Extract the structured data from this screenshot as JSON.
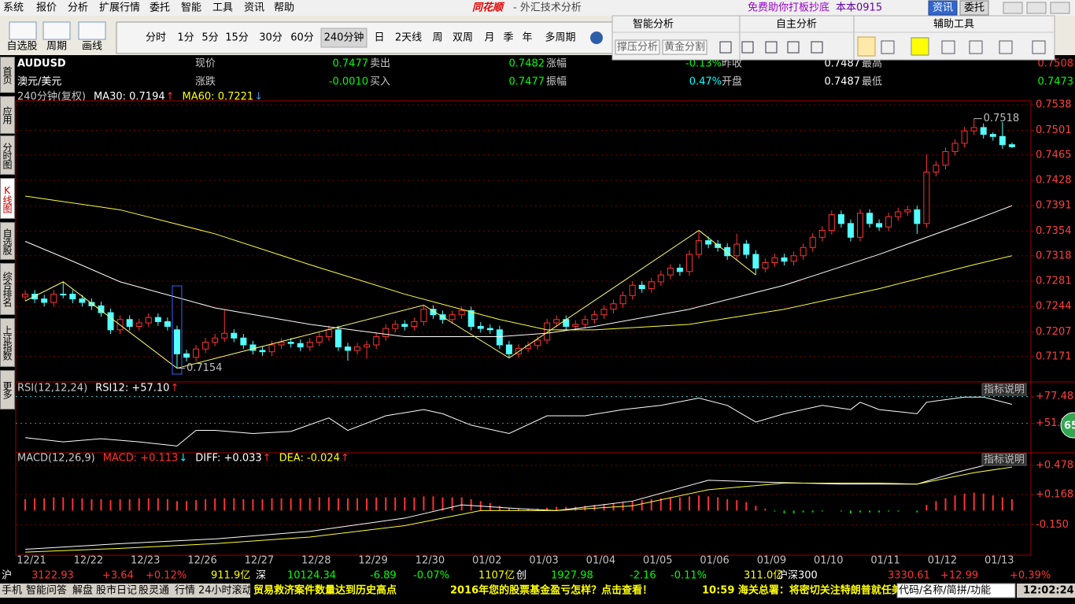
{
  "menu": [
    "系统",
    "报价",
    "分析",
    "扩展行情",
    "委托",
    "智能",
    "工具",
    "资讯",
    "帮助"
  ],
  "app_title": {
    "logo": "同花顺",
    "subtitle": "- 外汇技术分析"
  },
  "promo": "免费助你打板抄底",
  "account": "本本0915",
  "top_buttons": [
    "资讯",
    "委托"
  ],
  "tools": [
    "自选股",
    "周期",
    "画线"
  ],
  "periods": {
    "items": [
      "分时",
      "1分",
      "5分",
      "15分",
      "30分",
      "60分",
      "240分钟",
      "日",
      "2天线",
      "周",
      "双周",
      "月",
      "季",
      "年",
      "多周期"
    ],
    "selected": 6
  },
  "panels": {
    "smart": {
      "title": "智能分析",
      "buttons": [
        "撑压分析",
        "黄金分割"
      ]
    },
    "self": {
      "title": "自主分析"
    },
    "aux": {
      "title": "辅助工具"
    }
  },
  "side_tabs": {
    "items": [
      "首页",
      "应用",
      "分时图",
      "K线图",
      "自选股",
      "综合排名",
      "上证指数",
      "更多"
    ],
    "active": 3
  },
  "quote": {
    "symbol": "AUDUSD",
    "name": "澳元/美元",
    "rows": [
      [
        [
          "现价",
          "0.7477"
        ],
        [
          "卖出",
          "0.7482"
        ],
        [
          "涨幅",
          "-0.13%"
        ],
        [
          "昨收",
          "0.7487"
        ],
        [
          "最高",
          "0.7508"
        ]
      ],
      [
        [
          "涨跌",
          "-0.0010"
        ],
        [
          "买入",
          "0.7477"
        ],
        [
          "振幅",
          "0.47%"
        ],
        [
          "开盘",
          "0.7487"
        ],
        [
          "最低",
          "0.7473"
        ]
      ]
    ],
    "colors": [
      [
        "#00ff00",
        "#00ff00",
        "#00ff00",
        "#ffffff",
        "#ff3232"
      ],
      [
        "#00ff00",
        "#00ff00",
        "#00ffff",
        "#ffffff",
        "#00ff00"
      ]
    ]
  },
  "indicator_line": {
    "period": "240分钟(复权)",
    "items": [
      {
        "text": "MA30: 0.7194",
        "arrow": "↑",
        "color": "#ffffff",
        "arrow_color": "#ff3232"
      },
      {
        "text": "MA60: 0.7221",
        "arrow": "↓",
        "color": "#ffff00",
        "arrow_color": "#3399ff"
      }
    ]
  },
  "rsi_line": {
    "period": "RSI(12,12,24)",
    "items": [
      {
        "text": "RSI12: +57.10",
        "arrow": "↑",
        "color": "#ffffff",
        "arrow_color": "#ff3232"
      }
    ]
  },
  "macd_line": {
    "period": "MACD(12,26,9)",
    "items": [
      {
        "text": "MACD: +0.113",
        "arrow": "↓",
        "color": "#ff3232",
        "arrow_color": "#00ffff"
      },
      {
        "text": "DIFF: +0.033",
        "arrow": "↑",
        "color": "#ffffff",
        "arrow_color": "#ff3232"
      },
      {
        "text": "DEA: -0.024",
        "arrow": "↑",
        "color": "#ffff00",
        "arrow_color": "#ff3232"
      }
    ]
  },
  "indicator_help": "指标说明",
  "badge": "65",
  "chart_data": {
    "type": "candlestick",
    "up_color": "#ff3232",
    "down_color": "#54ffff",
    "grid": true,
    "xlim": [
      -1,
      106
    ],
    "xticks": [
      {
        "value": 0,
        "label": "12/21"
      },
      {
        "value": 6,
        "label": "12/22"
      },
      {
        "value": 12,
        "label": "12/23"
      },
      {
        "value": 18,
        "label": "12/26"
      },
      {
        "value": 24,
        "label": "12/27"
      },
      {
        "value": 30,
        "label": "12/28"
      },
      {
        "value": 36,
        "label": "12/29"
      },
      {
        "value": 42,
        "label": "12/30"
      },
      {
        "value": 48,
        "label": "01/02"
      },
      {
        "value": 54,
        "label": "01/03"
      },
      {
        "value": 60,
        "label": "01/04"
      },
      {
        "value": 66,
        "label": "01/05"
      },
      {
        "value": 72,
        "label": "01/06"
      },
      {
        "value": 78,
        "label": "01/09"
      },
      {
        "value": 84,
        "label": "01/10"
      },
      {
        "value": 90,
        "label": "01/11"
      },
      {
        "value": 96,
        "label": "01/12"
      },
      {
        "value": 102,
        "label": "01/13"
      }
    ],
    "ylim": [
      0.7134,
      0.7544
    ],
    "yticks": [
      0.7538,
      0.7501,
      0.7465,
      0.7428,
      0.7391,
      0.7354,
      0.7318,
      0.7281,
      0.7244,
      0.7207,
      0.7171
    ],
    "open": [
      0.7258,
      0.7262,
      0.7255,
      0.725,
      0.7262,
      0.7262,
      0.7255,
      0.725,
      0.7245,
      0.7235,
      0.721,
      0.7225,
      0.7215,
      0.722,
      0.7228,
      0.7222,
      0.721,
      0.7175,
      0.717,
      0.7182,
      0.7192,
      0.7198,
      0.7205,
      0.7198,
      0.7188,
      0.718,
      0.7178,
      0.7188,
      0.7192,
      0.719,
      0.7185,
      0.7192,
      0.72,
      0.721,
      0.7185,
      0.718,
      0.7185,
      0.7188,
      0.72,
      0.7212,
      0.7218,
      0.7215,
      0.7222,
      0.724,
      0.7232,
      0.7225,
      0.7232,
      0.7238,
      0.7215,
      0.7212,
      0.721,
      0.7188,
      0.7175,
      0.7183,
      0.7187,
      0.7195,
      0.722,
      0.7225,
      0.7215,
      0.7218,
      0.7225,
      0.7232,
      0.724,
      0.7248,
      0.726,
      0.7275,
      0.727,
      0.728,
      0.729,
      0.73,
      0.7295,
      0.732,
      0.734,
      0.7335,
      0.733,
      0.7318,
      0.7335,
      0.732,
      0.73,
      0.7308,
      0.7315,
      0.731,
      0.7318,
      0.733,
      0.7345,
      0.7355,
      0.7378,
      0.7365,
      0.7345,
      0.738,
      0.7365,
      0.736,
      0.7375,
      0.7382,
      0.7385,
      0.7365,
      0.744,
      0.745,
      0.747,
      0.7482,
      0.75,
      0.7505,
      0.7495,
      0.7492,
      0.748
    ],
    "high": [
      0.7268,
      0.7268,
      0.7261,
      0.7268,
      0.728,
      0.7268,
      0.7261,
      0.7256,
      0.7251,
      0.7241,
      0.7231,
      0.7231,
      0.7226,
      0.7234,
      0.7234,
      0.7228,
      0.7216,
      0.7181,
      0.7188,
      0.7198,
      0.7204,
      0.724,
      0.7211,
      0.7204,
      0.7194,
      0.7186,
      0.7194,
      0.7198,
      0.7198,
      0.7196,
      0.7198,
      0.7206,
      0.7216,
      0.7216,
      0.7191,
      0.7191,
      0.7194,
      0.7206,
      0.7218,
      0.7224,
      0.7224,
      0.7228,
      0.7246,
      0.7246,
      0.7238,
      0.7238,
      0.7244,
      0.7244,
      0.7221,
      0.7218,
      0.7216,
      0.7194,
      0.7189,
      0.7193,
      0.7201,
      0.7226,
      0.7231,
      0.7231,
      0.7224,
      0.7231,
      0.7238,
      0.7246,
      0.7254,
      0.7266,
      0.7281,
      0.7281,
      0.7286,
      0.7296,
      0.7306,
      0.7306,
      0.7326,
      0.7355,
      0.7346,
      0.7341,
      0.7336,
      0.735,
      0.7341,
      0.7326,
      0.7314,
      0.7321,
      0.7321,
      0.7324,
      0.7336,
      0.7351,
      0.7361,
      0.7384,
      0.7384,
      0.7371,
      0.7386,
      0.7386,
      0.7371,
      0.7381,
      0.7388,
      0.7391,
      0.7391,
      0.7466,
      0.7456,
      0.7476,
      0.7488,
      0.7506,
      0.7518,
      0.7511,
      0.7498,
      0.7513,
      0.7483
    ],
    "low": [
      0.7252,
      0.7249,
      0.7244,
      0.7244,
      0.7256,
      0.7249,
      0.7244,
      0.7239,
      0.7229,
      0.7204,
      0.7204,
      0.7209,
      0.7209,
      0.7214,
      0.7216,
      0.7209,
      0.7154,
      0.7164,
      0.7164,
      0.7176,
      0.7186,
      0.7192,
      0.7192,
      0.7182,
      0.7174,
      0.7172,
      0.7172,
      0.7182,
      0.7184,
      0.7179,
      0.7179,
      0.7186,
      0.7194,
      0.7179,
      0.7165,
      0.7174,
      0.7168,
      0.7182,
      0.7194,
      0.7206,
      0.7209,
      0.7209,
      0.7216,
      0.7226,
      0.7219,
      0.7219,
      0.7226,
      0.7209,
      0.7206,
      0.7204,
      0.7182,
      0.7169,
      0.7169,
      0.7177,
      0.7181,
      0.7189,
      0.7214,
      0.7209,
      0.7209,
      0.7212,
      0.7219,
      0.7226,
      0.7234,
      0.7242,
      0.7254,
      0.7264,
      0.7264,
      0.7274,
      0.7284,
      0.7289,
      0.7289,
      0.7314,
      0.7329,
      0.7324,
      0.7312,
      0.7312,
      0.7314,
      0.729,
      0.7294,
      0.7302,
      0.7304,
      0.7304,
      0.7312,
      0.7324,
      0.7339,
      0.7349,
      0.7359,
      0.7339,
      0.7339,
      0.7359,
      0.7354,
      0.7354,
      0.7369,
      0.7376,
      0.735,
      0.7359,
      0.7434,
      0.7444,
      0.7464,
      0.7476,
      0.7494,
      0.7489,
      0.7486,
      0.7474,
      0.7475
    ],
    "close": [
      0.7262,
      0.7255,
      0.725,
      0.7262,
      0.7262,
      0.7255,
      0.725,
      0.7245,
      0.7235,
      0.721,
      0.7225,
      0.7215,
      0.722,
      0.7228,
      0.7222,
      0.7215,
      0.7175,
      0.717,
      0.7182,
      0.7192,
      0.7198,
      0.7205,
      0.7198,
      0.7188,
      0.718,
      0.7178,
      0.7188,
      0.7192,
      0.719,
      0.7185,
      0.7192,
      0.72,
      0.721,
      0.7185,
      0.718,
      0.7185,
      0.7188,
      0.72,
      0.7212,
      0.7218,
      0.7215,
      0.7222,
      0.724,
      0.7232,
      0.7225,
      0.7232,
      0.7238,
      0.7215,
      0.7212,
      0.721,
      0.7188,
      0.7175,
      0.7183,
      0.7187,
      0.7195,
      0.722,
      0.7225,
      0.7215,
      0.7218,
      0.7225,
      0.7232,
      0.724,
      0.7248,
      0.726,
      0.7275,
      0.727,
      0.728,
      0.729,
      0.73,
      0.7295,
      0.732,
      0.734,
      0.7335,
      0.733,
      0.7318,
      0.7335,
      0.732,
      0.73,
      0.7308,
      0.7315,
      0.731,
      0.7318,
      0.733,
      0.7345,
      0.7355,
      0.7378,
      0.7365,
      0.7345,
      0.738,
      0.7365,
      0.736,
      0.7375,
      0.7382,
      0.7385,
      0.7365,
      0.744,
      0.745,
      0.747,
      0.7482,
      0.75,
      0.7505,
      0.7495,
      0.7492,
      0.748,
      0.7477
    ],
    "ma_lines": [
      {
        "color": "#ffffff",
        "x": [
          0,
          5,
          10,
          20,
          30,
          40,
          50,
          55,
          60,
          70,
          80,
          90,
          100,
          104
        ],
        "values": [
          0.7339,
          0.731,
          0.728,
          0.7242,
          0.7218,
          0.72,
          0.72,
          0.7205,
          0.7215,
          0.724,
          0.7275,
          0.732,
          0.737,
          0.7391
        ]
      },
      {
        "color": "#ffff33",
        "x": [
          0,
          10,
          20,
          30,
          40,
          50,
          55,
          60,
          70,
          80,
          90,
          100,
          104
        ],
        "values": [
          0.7405,
          0.7385,
          0.735,
          0.7305,
          0.7262,
          0.7225,
          0.721,
          0.721,
          0.7218,
          0.724,
          0.727,
          0.7305,
          0.7318
        ]
      }
    ],
    "zigzag": {
      "color": "#ffff66",
      "x": [
        0,
        4,
        16,
        42,
        51,
        71,
        77
      ],
      "values": [
        0.7252,
        0.728,
        0.7154,
        0.7246,
        0.7169,
        0.7355,
        0.729
      ]
    },
    "rsi": {
      "ylim": [
        25,
        90
      ],
      "yticks": [
        {
          "value": 77.48,
          "label": "+77.48"
        },
        {
          "value": 51.77,
          "label": "+51.77"
        }
      ],
      "tick_colors": [
        "#33cccc",
        "#33aa33"
      ],
      "color": "#ffffff",
      "x": [
        0,
        4,
        8,
        12,
        16,
        18,
        20,
        24,
        28,
        32,
        34,
        38,
        42,
        44,
        47,
        51,
        55,
        59,
        63,
        67,
        71,
        74,
        77,
        80,
        84,
        87,
        88,
        90,
        94,
        95,
        99,
        101,
        104
      ],
      "values": [
        38,
        34,
        37,
        34,
        30,
        45,
        45,
        42,
        44,
        57,
        45,
        59,
        65,
        61,
        50,
        42,
        59,
        59,
        65,
        69,
        76,
        69,
        53,
        61,
        69,
        65,
        72,
        65,
        61,
        72,
        77,
        77,
        70
      ]
    },
    "macd": {
      "ylim": [
        -0.472,
        0.594
      ],
      "yticks": [
        {
          "value": 0.478,
          "label": "+0.478"
        },
        {
          "value": 0.168,
          "label": "+0.168"
        },
        {
          "value": -0.15,
          "label": "-0.150"
        }
      ],
      "up_color": "#ff3232",
      "down_color": "#00cc00",
      "histogram": [
        0.12,
        0.13,
        0.13,
        0.14,
        0.14,
        0.13,
        0.13,
        0.12,
        0.12,
        0.11,
        0.12,
        0.12,
        0.13,
        0.13,
        0.13,
        0.12,
        0.1,
        0.1,
        0.11,
        0.12,
        0.13,
        0.13,
        0.13,
        0.12,
        0.12,
        0.12,
        0.13,
        0.13,
        0.13,
        0.13,
        0.13,
        0.14,
        0.14,
        0.13,
        0.13,
        0.13,
        0.13,
        0.14,
        0.14,
        0.14,
        0.14,
        0.14,
        0.15,
        0.15,
        0.14,
        0.14,
        0.14,
        0.12,
        0.1,
        0.08,
        0.05,
        0.03,
        0.02,
        0.02,
        0.02,
        0.03,
        0.04,
        0.04,
        0.04,
        0.05,
        0.06,
        0.07,
        0.08,
        0.09,
        0.1,
        0.11,
        0.12,
        0.13,
        0.14,
        0.14,
        0.15,
        0.16,
        0.15,
        0.14,
        0.12,
        0.11,
        0.09,
        0.05,
        0.02,
        -0.01,
        -0.03,
        -0.03,
        -0.02,
        -0.02,
        -0.01,
        0.0,
        -0.01,
        -0.03,
        -0.02,
        -0.02,
        -0.02,
        -0.01,
        -0.01,
        0.0,
        -0.02,
        0.06,
        0.1,
        0.13,
        0.16,
        0.18,
        0.19,
        0.18,
        0.16,
        0.14,
        0.12
      ],
      "diff": {
        "color": "#ffffff",
        "x": [
          0,
          10,
          20,
          30,
          40,
          46,
          52,
          56,
          64,
          72,
          78,
          86,
          94,
          98,
          102,
          104
        ],
        "values": [
          -0.41,
          -0.35,
          -0.3,
          -0.22,
          -0.08,
          0.06,
          0.02,
          0.0,
          0.1,
          0.32,
          0.3,
          0.28,
          0.28,
          0.4,
          0.5,
          0.48
        ]
      },
      "dea": {
        "color": "#ffff33",
        "x": [
          0,
          10,
          20,
          30,
          40,
          48,
          56,
          64,
          72,
          80,
          90,
          94,
          100,
          104
        ],
        "values": [
          -0.44,
          -0.4,
          -0.35,
          -0.28,
          -0.16,
          0.0,
          0.0,
          0.05,
          0.22,
          0.29,
          0.29,
          0.28,
          0.4,
          0.46
        ]
      }
    }
  },
  "status": [
    {
      "text": "沪",
      "color": "#ffffff"
    },
    {
      "text": "3122.93",
      "color": "#ff3232"
    },
    {
      "text": "+3.64",
      "color": "#ff3232"
    },
    {
      "text": "+0.12%",
      "color": "#ff3232"
    },
    {
      "text": "911.9亿",
      "color": "#ffff00"
    },
    {
      "text": "深",
      "color": "#ffffff"
    },
    {
      "text": "10124.34",
      "color": "#00ff00"
    },
    {
      "text": "-6.89",
      "color": "#00ff00"
    },
    {
      "text": "-0.07%",
      "color": "#00ff00"
    },
    {
      "text": "1107亿",
      "color": "#ffff00"
    },
    {
      "text": "创",
      "color": "#ffffff"
    },
    {
      "text": "1927.98",
      "color": "#00ff00"
    },
    {
      "text": "-2.16",
      "color": "#00ff00"
    },
    {
      "text": "-0.11%",
      "color": "#00ff00"
    },
    {
      "text": "311.0亿",
      "color": "#ffff00"
    },
    {
      "text": "沪深300",
      "color": "#ffffff"
    },
    {
      "text": "3330.61",
      "color": "#ff3232"
    },
    {
      "text": "+12.99",
      "color": "#ff3232"
    },
    {
      "text": "+0.39%",
      "color": "#ff3232"
    }
  ],
  "ticker": {
    "items": [
      "手机",
      "智能问答",
      "解盘",
      "股市日记",
      "股灵通",
      "行情",
      "24小时滚动"
    ],
    "news": [
      "贸易救济案件数量达到历史高点",
      "2016年您的股票基金盈亏怎样？点击查看！",
      "10:59 海关总署：将密切关注特朗普就任美"
    ],
    "search": "代码/名称/简拼/功能",
    "clock": "12:02:24"
  }
}
